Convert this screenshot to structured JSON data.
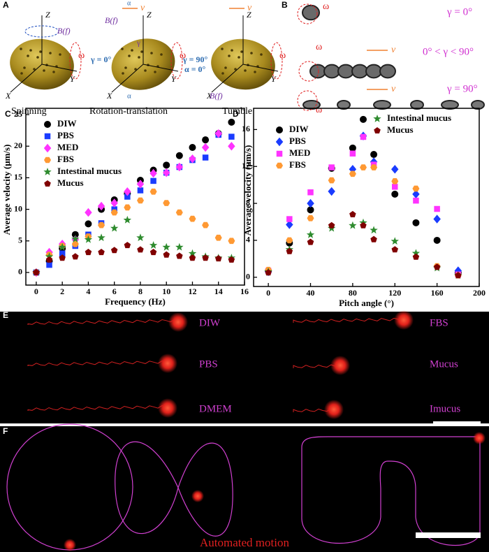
{
  "panel_a": {
    "label": "A",
    "axis_z": "Z",
    "axis_y": "Y",
    "axis_x": "X",
    "field": "B(f)",
    "omega": "ω",
    "velocity": "v",
    "gamma_0": "γ = 0°",
    "gamma_90": "γ = 90°",
    "alpha_0": "α = 0°",
    "alpha": "α",
    "gamma": "γ",
    "captions": [
      "Spinning",
      "Rotation-translation",
      "Tumble"
    ]
  },
  "panel_b": {
    "label": "B",
    "omega": "ω",
    "velocity": "v",
    "conditions": [
      "γ = 0°",
      "0° < γ < 90°",
      "γ = 90°"
    ]
  },
  "chart_data": [
    {
      "type": "scatter",
      "label": "C",
      "x_label": "Frequency (Hz)",
      "y_label": "Average velocity (μm/s)",
      "x": [
        0,
        1,
        2,
        3,
        4,
        5,
        6,
        7,
        8,
        9,
        10,
        11,
        12,
        13,
        14,
        15
      ],
      "xlim": [
        -0.8,
        16
      ],
      "ylim": [
        -2,
        26
      ],
      "xticks": [
        0,
        2,
        4,
        6,
        8,
        10,
        12,
        14,
        16
      ],
      "yticks": [
        0,
        5,
        10,
        15,
        20,
        25
      ],
      "legend": "upper left",
      "series": [
        {
          "name": "DIW",
          "color": "#000000",
          "marker": "circle",
          "values": [
            0,
            1.8,
            3.8,
            6,
            7.7,
            10,
            11.5,
            12.5,
            14.6,
            16.2,
            17,
            18.5,
            19.8,
            21,
            22,
            23.8
          ]
        },
        {
          "name": "PBS",
          "color": "#1a3cff",
          "marker": "square",
          "values": [
            0,
            1.2,
            3,
            4.2,
            6,
            7.8,
            10,
            12,
            13,
            14.5,
            15.8,
            16.7,
            17.8,
            18.2,
            21.8,
            21.5
          ]
        },
        {
          "name": "MED",
          "color": "#ff33ff",
          "marker": "diamond",
          "values": [
            0,
            3.2,
            4.5,
            5.2,
            9.5,
            10.5,
            11,
            12.8,
            14,
            15.7,
            15.8,
            16.7,
            18,
            19.8,
            22,
            20
          ]
        },
        {
          "name": "FBS",
          "color": "#ff9933",
          "marker": "hexagon",
          "values": [
            0,
            2.8,
            4.2,
            4.5,
            5.7,
            7.5,
            9.5,
            10.3,
            11.4,
            12.8,
            11,
            9.5,
            8.5,
            7.5,
            5.5,
            5
          ]
        },
        {
          "name": "Intestinal mucus",
          "color": "#2e8b2e",
          "marker": "star",
          "values": [
            0,
            2.5,
            4,
            5.3,
            5.2,
            5.5,
            7,
            8.3,
            5.5,
            4.3,
            4,
            4,
            3,
            2.5,
            2.3,
            2.3
          ]
        },
        {
          "name": "Mucus",
          "color": "#800000",
          "marker": "pentagon",
          "values": [
            0,
            2,
            2.3,
            2.5,
            3.2,
            3.2,
            3.5,
            4.3,
            3.6,
            3.2,
            2.8,
            2.6,
            2.3,
            2.3,
            2.2,
            2
          ]
        }
      ]
    },
    {
      "type": "scatter",
      "label": "D",
      "x_label": "Pitch angle (°)",
      "y_label": "Average velocity (μm/s)",
      "x": [
        0,
        20,
        40,
        60,
        80,
        90,
        100,
        120,
        140,
        160,
        180
      ],
      "xlim": [
        -14,
        200
      ],
      "ylim": [
        -1,
        18.3
      ],
      "xticks": [
        0,
        40,
        80,
        120,
        160,
        200
      ],
      "yticks": [
        0,
        4,
        8,
        12,
        16
      ],
      "legend": "upper left",
      "series": [
        {
          "name": "DIW",
          "color": "#000000",
          "marker": "circle",
          "values": [
            0.7,
            3.7,
            7.3,
            11.8,
            14,
            17.1,
            13.3,
            9,
            5.9,
            4,
            0.5
          ]
        },
        {
          "name": "PBS",
          "color": "#1a3cff",
          "marker": "diamond",
          "values": [
            0.6,
            5.7,
            8,
            9.3,
            11.7,
            15.3,
            12.5,
            11.7,
            9,
            6.3,
            0.7
          ]
        },
        {
          "name": "MED",
          "color": "#ff33ff",
          "marker": "square",
          "values": [
            0.7,
            6.3,
            9.2,
            11.9,
            13.4,
            15.2,
            12.2,
            9.8,
            8.3,
            7.4,
            0.3
          ]
        },
        {
          "name": "FBS",
          "color": "#ff9933",
          "marker": "hexagon",
          "values": [
            0.8,
            4,
            6.4,
            10.5,
            11.2,
            11.9,
            11.9,
            10.4,
            9.6,
            1.2,
            0.2
          ]
        },
        {
          "name": "Intestinal mucus",
          "color": "#2e8b2e",
          "marker": "star",
          "values": [
            0.6,
            3,
            4.6,
            5.3,
            5.6,
            5.9,
            5.1,
            3.9,
            2.6,
            1,
            0.2
          ]
        },
        {
          "name": "Mucus",
          "color": "#800000",
          "marker": "pentagon",
          "values": [
            0.5,
            2.8,
            3.8,
            5.6,
            6.8,
            5.6,
            4.1,
            3,
            2.2,
            1.1,
            0.2
          ]
        }
      ]
    }
  ],
  "panel_e": {
    "label": "E",
    "media": [
      "DIW",
      "PBS",
      "DMEM",
      "FBS",
      "Mucus",
      "Imucus"
    ]
  },
  "panel_f": {
    "label": "F",
    "caption": "Automated motion"
  }
}
